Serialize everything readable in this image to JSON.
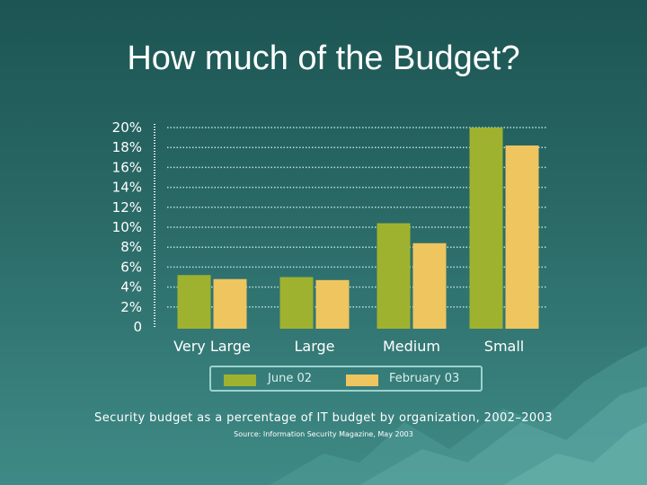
{
  "slide": {
    "title": "How much of the Budget?",
    "caption": "Security budget as a percentage of IT budget by organization, 2002–2003",
    "source": "Source:  Information Security Magazine, May 2003"
  },
  "colors": {
    "june": "#9fb22f",
    "february": "#eec55f",
    "gridline": "#b7e0dc",
    "text": "#ffffff"
  },
  "chart_data": {
    "type": "bar",
    "categories": [
      "Very Large",
      "Large",
      "Medium",
      "Small"
    ],
    "series": [
      {
        "name": "June 02",
        "values": [
          5.2,
          5.0,
          10.4,
          20.0
        ]
      },
      {
        "name": "February 03",
        "values": [
          4.8,
          4.7,
          8.4,
          18.2
        ]
      }
    ],
    "ylim": [
      0,
      20
    ],
    "ytick_labels": [
      "0",
      "2%",
      "4%",
      "6%",
      "8%",
      "10%",
      "12%",
      "14%",
      "16%",
      "18%",
      "20%"
    ],
    "grid": true,
    "legend": "bottom"
  }
}
